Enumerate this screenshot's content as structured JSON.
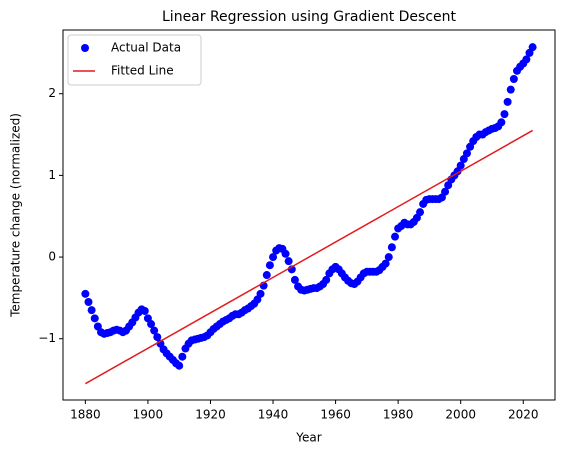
{
  "chart_data": {
    "type": "scatter",
    "title": "Linear Regression using Gradient Descent",
    "x_label": "Year",
    "y_label": "Temperature change (normalized)",
    "xlim": [
      1872.85,
      2030.15
    ],
    "ylim": [
      -1.75,
      2.78
    ],
    "xticks": [
      1880,
      1900,
      1920,
      1940,
      1960,
      1980,
      2000,
      2020
    ],
    "yticks": [
      {
        "value": -1,
        "label": "−1"
      },
      0,
      1,
      2
    ],
    "legend": "upper left",
    "grid": false,
    "series": [
      {
        "name": "Actual Data",
        "type": "scatter",
        "color": "#0000ff",
        "x": [
          1880,
          1881,
          1882,
          1883,
          1884,
          1885,
          1886,
          1887,
          1888,
          1889,
          1890,
          1891,
          1892,
          1893,
          1894,
          1895,
          1896,
          1897,
          1898,
          1899,
          1900,
          1901,
          1902,
          1903,
          1904,
          1905,
          1906,
          1907,
          1908,
          1909,
          1910,
          1911,
          1912,
          1913,
          1914,
          1915,
          1916,
          1917,
          1918,
          1919,
          1920,
          1921,
          1922,
          1923,
          1924,
          1925,
          1926,
          1927,
          1928,
          1929,
          1930,
          1931,
          1932,
          1933,
          1934,
          1935,
          1936,
          1937,
          1938,
          1939,
          1940,
          1941,
          1942,
          1943,
          1944,
          1945,
          1946,
          1947,
          1948,
          1949,
          1950,
          1951,
          1952,
          1953,
          1954,
          1955,
          1956,
          1957,
          1958,
          1959,
          1960,
          1961,
          1962,
          1963,
          1964,
          1965,
          1966,
          1967,
          1968,
          1969,
          1970,
          1971,
          1972,
          1973,
          1974,
          1975,
          1976,
          1977,
          1978,
          1979,
          1980,
          1981,
          1982,
          1983,
          1984,
          1985,
          1986,
          1987,
          1988,
          1989,
          1990,
          1991,
          1992,
          1993,
          1994,
          1995,
          1996,
          1997,
          1998,
          1999,
          2000,
          2001,
          2002,
          2003,
          2004,
          2005,
          2006,
          2007,
          2008,
          2009,
          2010,
          2011,
          2012,
          2013,
          2014,
          2015,
          2016,
          2017,
          2018,
          2019,
          2020,
          2021,
          2022,
          2023
        ],
        "values": [
          -0.45,
          -0.55,
          -0.65,
          -0.75,
          -0.85,
          -0.92,
          -0.94,
          -0.93,
          -0.92,
          -0.9,
          -0.89,
          -0.9,
          -0.92,
          -0.9,
          -0.85,
          -0.8,
          -0.74,
          -0.68,
          -0.64,
          -0.66,
          -0.75,
          -0.82,
          -0.9,
          -0.98,
          -1.06,
          -1.13,
          -1.18,
          -1.22,
          -1.26,
          -1.3,
          -1.33,
          -1.22,
          -1.12,
          -1.06,
          -1.02,
          -1.01,
          -1.0,
          -0.99,
          -0.98,
          -0.96,
          -0.92,
          -0.88,
          -0.85,
          -0.82,
          -0.79,
          -0.77,
          -0.75,
          -0.72,
          -0.7,
          -0.7,
          -0.68,
          -0.65,
          -0.63,
          -0.6,
          -0.57,
          -0.52,
          -0.45,
          -0.35,
          -0.22,
          -0.1,
          0.0,
          0.08,
          0.11,
          0.1,
          0.04,
          -0.05,
          -0.15,
          -0.28,
          -0.36,
          -0.4,
          -0.41,
          -0.4,
          -0.39,
          -0.38,
          -0.38,
          -0.36,
          -0.33,
          -0.28,
          -0.2,
          -0.15,
          -0.12,
          -0.15,
          -0.2,
          -0.25,
          -0.29,
          -0.32,
          -0.33,
          -0.3,
          -0.25,
          -0.2,
          -0.18,
          -0.18,
          -0.18,
          -0.18,
          -0.16,
          -0.12,
          -0.08,
          0.0,
          0.12,
          0.25,
          0.35,
          0.38,
          0.42,
          0.4,
          0.4,
          0.43,
          0.48,
          0.55,
          0.65,
          0.7,
          0.71,
          0.71,
          0.71,
          0.71,
          0.73,
          0.8,
          0.88,
          0.95,
          1.0,
          1.05,
          1.12,
          1.2,
          1.27,
          1.35,
          1.42,
          1.47,
          1.5,
          1.5,
          1.53,
          1.55,
          1.57,
          1.58,
          1.6,
          1.65,
          1.75,
          1.9,
          2.05,
          2.18,
          2.28,
          2.33,
          2.37,
          2.42,
          2.5,
          2.57
        ]
      },
      {
        "name": "Fitted Line",
        "type": "line",
        "color": "#e41a1c",
        "x": [
          1880,
          2023
        ],
        "values": [
          -1.55,
          1.55
        ]
      }
    ]
  }
}
